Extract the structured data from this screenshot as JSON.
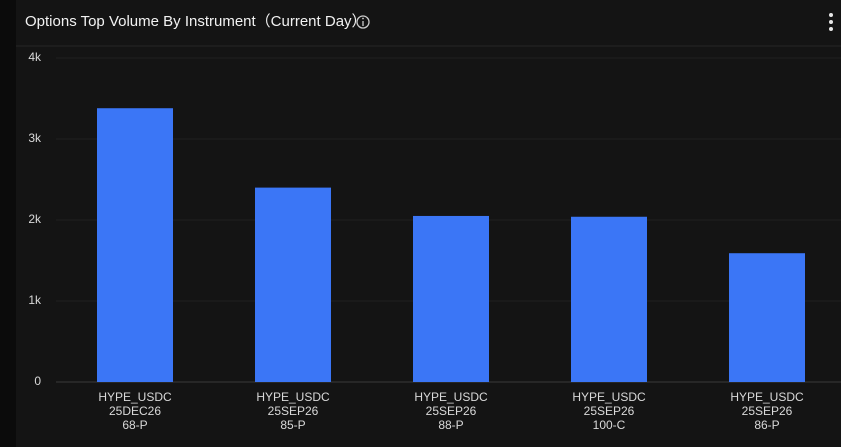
{
  "chart_data": {
    "type": "bar",
    "title": "Options Top Volume By Instrument（Current Day）",
    "categories": [
      [
        "HYPE_USDC",
        "25DEC26",
        "68-P"
      ],
      [
        "HYPE_USDC",
        "25SEP26",
        "85-P"
      ],
      [
        "HYPE_USDC",
        "25SEP26",
        "88-P"
      ],
      [
        "HYPE_USDC",
        "25SEP26",
        "100-C"
      ],
      [
        "HYPE_USDC",
        "25SEP26",
        "86-P"
      ]
    ],
    "values": [
      3380,
      2400,
      2050,
      2040,
      1590
    ],
    "color": "#3b76f6",
    "ylim": [
      0,
      4000
    ],
    "yticks": [
      0,
      {
        "value": 1000,
        "label": "1k"
      },
      {
        "value": 2000,
        "label": "2k"
      },
      {
        "value": 3000,
        "label": "3k"
      },
      {
        "value": 4000,
        "label": "4k"
      }
    ],
    "grid": true
  }
}
